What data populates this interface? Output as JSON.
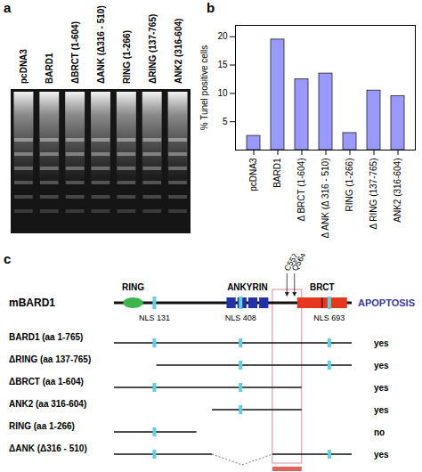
{
  "panels": [
    "a",
    "b",
    "c"
  ],
  "gel": {
    "lanes": [
      "pcDNA3",
      "BARD1",
      "ΔBRCT (1-604)",
      "ΔANK (Δ316 - 510)",
      "RING (1-266)",
      "ΔRING (137-765)",
      "ANK2 (316-604)"
    ]
  },
  "chart_data": {
    "type": "bar",
    "categories": [
      "pcDNA3",
      "BARD1",
      "Δ BRCT (1-604)",
      "Δ ANK (Δ 316 - 510)",
      "RING (1-266)",
      "Δ RING (137-765)",
      "ANK2 (316-604)"
    ],
    "values": [
      2.5,
      19.5,
      12.5,
      13.5,
      3,
      10.5,
      9.5
    ],
    "y_label": "% Tunel positive cells",
    "color": "#9999ff",
    "ylim": [
      0,
      22
    ],
    "yticks": [
      5,
      10,
      15,
      20
    ],
    "grid": false
  },
  "diagram": {
    "protein": "mBARD1",
    "domains": [
      "RING",
      "ANKYRIN",
      "BRCT"
    ],
    "nls": [
      {
        "label": "NLS 131",
        "position": 131
      },
      {
        "label": "NLS 408",
        "position": 408
      },
      {
        "label": "NLS 693",
        "position": 693
      }
    ],
    "mutations": [
      "C557S",
      "Q564H"
    ],
    "column_title": "APOPTOSIS",
    "constructs": [
      {
        "label": "BARD1 (aa 1-765)",
        "segments": [
          [
            1,
            765
          ]
        ],
        "apoptosis": "yes"
      },
      {
        "label": "ΔRING (aa 137-765)",
        "segments": [
          [
            137,
            765
          ]
        ],
        "apoptosis": "yes"
      },
      {
        "label": "ΔBRCT (aa 1-604)",
        "segments": [
          [
            1,
            604
          ]
        ],
        "apoptosis": "yes"
      },
      {
        "label": "ANK2 (aa 316-604)",
        "segments": [
          [
            316,
            604
          ]
        ],
        "apoptosis": "yes"
      },
      {
        "label": "RING (aa 1-266)",
        "segments": [
          [
            1,
            266
          ]
        ],
        "apoptosis": "no"
      },
      {
        "label": "ΔANK (Δ316 - 510)",
        "segments": [
          [
            1,
            316
          ],
          [
            510,
            765
          ]
        ],
        "apoptosis": "yes"
      }
    ]
  }
}
